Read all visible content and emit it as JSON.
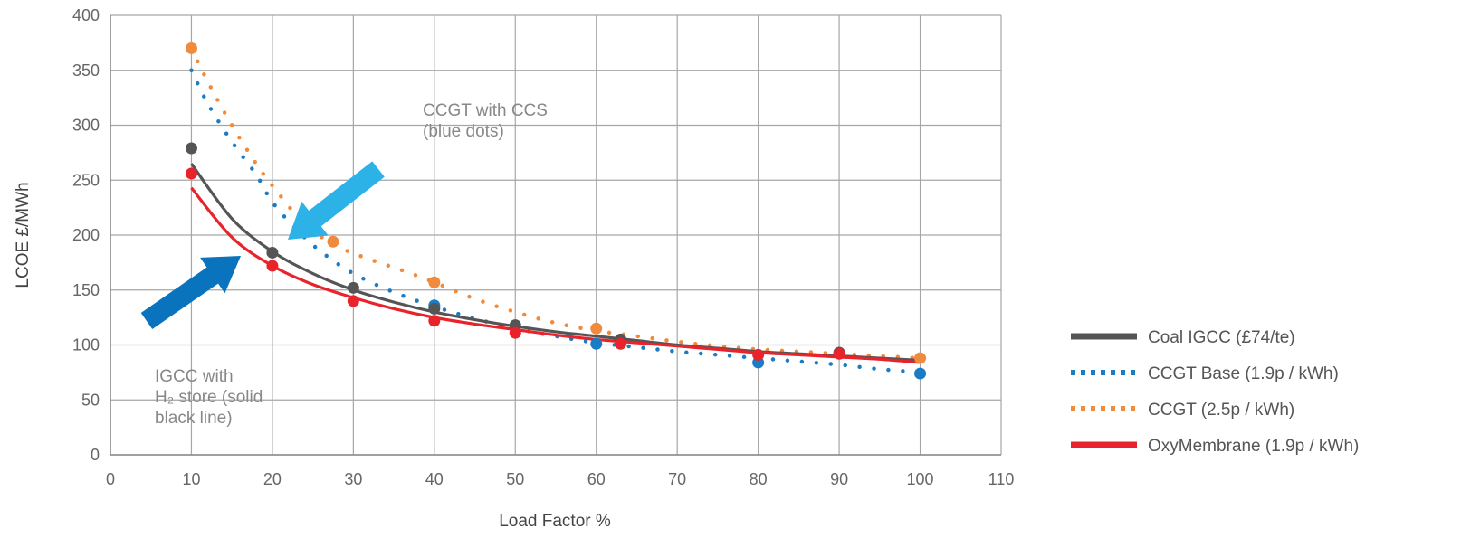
{
  "chart_data": {
    "type": "line",
    "xlabel": "Load Factor %",
    "ylabel": "LCOE £/MWh",
    "xlim": [
      0,
      110
    ],
    "ylim": [
      0,
      400
    ],
    "x_ticks": [
      0,
      10,
      20,
      30,
      40,
      50,
      60,
      70,
      80,
      90,
      100,
      110
    ],
    "y_ticks": [
      0,
      50,
      100,
      150,
      200,
      250,
      300,
      350,
      400
    ],
    "grid": true,
    "legend_position": "right",
    "series": [
      {
        "name": "Coal IGCC (£74/te)",
        "color": "#555555",
        "style": "solid",
        "curve": {
          "x": [
            10,
            15,
            20,
            25,
            30,
            35,
            40,
            45,
            50,
            55,
            60,
            65,
            70,
            75,
            80,
            85,
            90,
            95,
            100
          ],
          "y": [
            265,
            215,
            185,
            165,
            150,
            139,
            130,
            123,
            117,
            112,
            108,
            104,
            100,
            97,
            94,
            92,
            90,
            88,
            86
          ]
        },
        "points": {
          "x": [
            10,
            20,
            30,
            40,
            50,
            63,
            90
          ],
          "y": [
            279,
            184,
            152,
            133,
            118,
            105,
            93
          ]
        }
      },
      {
        "name": "CCGT Base (1.9p / kWh)",
        "color": "#1a7cc4",
        "style": "dotted",
        "curve": {
          "x": [
            10,
            12,
            15,
            18,
            20,
            23,
            26,
            30,
            35,
            40,
            45,
            50,
            55,
            60,
            65,
            70,
            75,
            80,
            85,
            90,
            95,
            100
          ],
          "y": [
            350,
            320,
            285,
            255,
            230,
            205,
            185,
            165,
            148,
            135,
            124,
            115,
            108,
            102,
            98,
            94,
            91,
            88,
            85,
            82,
            78,
            75
          ]
        },
        "points": {
          "x": [
            40,
            60,
            80,
            100
          ],
          "y": [
            136,
            101,
            84,
            74
          ]
        }
      },
      {
        "name": "CCGT (2.5p / kWh)",
        "color": "#f08a3c",
        "style": "dotted",
        "curve": {
          "x": [
            10,
            12,
            15,
            18,
            20,
            24,
            28,
            32,
            36,
            40,
            45,
            50,
            55,
            60,
            65,
            70,
            75,
            80,
            85,
            90,
            95,
            100
          ],
          "y": [
            370,
            340,
            300,
            265,
            245,
            210,
            190,
            178,
            168,
            157,
            142,
            130,
            120,
            113,
            108,
            103,
            99,
            96,
            94,
            92,
            90,
            88
          ]
        },
        "points": {
          "x": [
            10,
            27.5,
            40,
            60,
            100
          ],
          "y": [
            370,
            194,
            157,
            115,
            88
          ]
        }
      },
      {
        "name": "OxyMembrane (1.9p / kWh)",
        "color": "#e8232c",
        "style": "solid",
        "curve": {
          "x": [
            10,
            15,
            20,
            25,
            30,
            35,
            40,
            45,
            50,
            55,
            60,
            65,
            70,
            75,
            80,
            85,
            90,
            95,
            100
          ],
          "y": [
            243,
            198,
            172,
            155,
            143,
            133,
            125,
            119,
            114,
            109,
            105,
            102,
            99,
            96,
            93,
            91,
            89,
            87,
            84
          ]
        },
        "points": {
          "x": [
            10,
            20,
            30,
            40,
            50,
            63,
            80,
            90
          ],
          "y": [
            256,
            172,
            140,
            122,
            111,
            101,
            91,
            92
          ]
        }
      }
    ],
    "annotations": [
      {
        "lines": [
          "CCGT with CCS",
          "(blue dots)"
        ]
      },
      {
        "lines": [
          "IGCC with",
          "H₂ store (solid",
          "black line)"
        ]
      }
    ],
    "arrows": [
      {
        "color": "#2cb2e6"
      },
      {
        "color": "#0a73be"
      }
    ]
  }
}
